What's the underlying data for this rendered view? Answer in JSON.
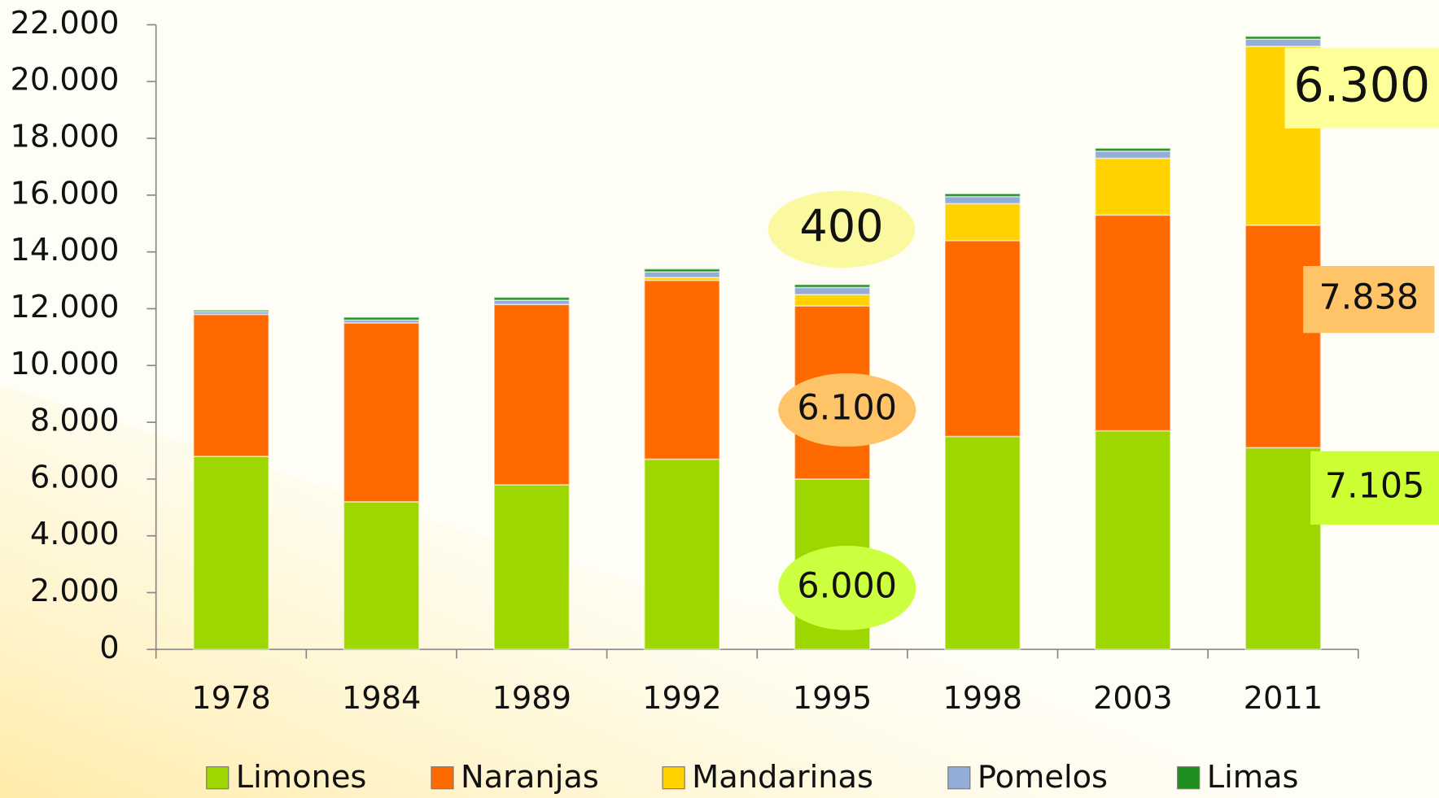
{
  "chart_data": {
    "type": "stacked_bar",
    "categories": [
      "1978",
      "1984",
      "1989",
      "1992",
      "1995",
      "1998",
      "2003",
      "2011"
    ],
    "series": [
      {
        "name": "Limones",
        "color": "#9ed600",
        "values": [
          6800,
          5200,
          5800,
          6700,
          6000,
          7500,
          7700,
          7105
        ]
      },
      {
        "name": "Naranjas",
        "color": "#ff6a00",
        "values": [
          5000,
          6300,
          6350,
          6300,
          6100,
          6900,
          7600,
          7838
        ]
      },
      {
        "name": "Mandarinas",
        "color": "#ffd200",
        "values": [
          0,
          0,
          0,
          100,
          400,
          1300,
          2000,
          6300
        ]
      },
      {
        "name": "Pomelos",
        "color": "#94acd8",
        "values": [
          100,
          100,
          150,
          200,
          250,
          250,
          250,
          250
        ]
      },
      {
        "name": "Limas",
        "color": "#1f8f1f",
        "values": [
          50,
          100,
          100,
          100,
          100,
          100,
          100,
          100
        ]
      }
    ],
    "ylim": [
      0,
      22000
    ],
    "yticks": [
      0,
      {
        "value": 2000,
        "label": "2.000"
      },
      {
        "value": 4000,
        "label": "4.000"
      },
      {
        "value": 6000,
        "label": "6.000"
      },
      {
        "value": 8000,
        "label": "8.000"
      },
      {
        "value": 10000,
        "label": "10.000"
      },
      {
        "value": 12000,
        "label": "12.000"
      },
      {
        "value": 14000,
        "label": "14.000"
      },
      {
        "value": 16000,
        "label": "16.000"
      },
      {
        "value": 18000,
        "label": "18.000"
      },
      {
        "value": 20000,
        "label": "20.000"
      },
      {
        "value": 22000,
        "label": "22.000"
      }
    ],
    "annotations": [
      {
        "text": "400",
        "color": "#fbf9a0"
      },
      {
        "text": "6.100",
        "color": "#ffc468"
      },
      {
        "text": "6.000",
        "color": "#ccff40"
      },
      {
        "text": "6.300",
        "color": "#ffff99"
      },
      {
        "text": "7.838",
        "color": "#ffc468"
      },
      {
        "text": "7.105",
        "color": "#ccff33"
      }
    ],
    "legend": "bottom"
  }
}
